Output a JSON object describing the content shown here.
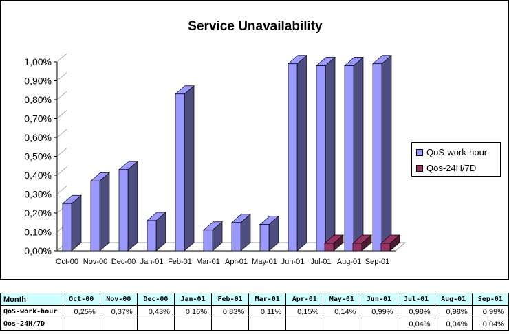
{
  "chart_data": {
    "type": "bar",
    "title": "Service Unavailability",
    "categories": [
      "Oct-00",
      "Nov-00",
      "Dec-00",
      "Jan-01",
      "Feb-01",
      "Mar-01",
      "Apr-01",
      "May-01",
      "Jun-01",
      "Jul-01",
      "Aug-01",
      "Sep-01"
    ],
    "series": [
      {
        "name": "QoS-work-hour",
        "values": [
          0.25,
          0.37,
          0.43,
          0.16,
          0.83,
          0.11,
          0.15,
          0.14,
          0.99,
          0.98,
          0.98,
          0.99
        ],
        "color": "#9999ff"
      },
      {
        "name": "Qos-24H/7D",
        "values": [
          null,
          null,
          null,
          null,
          null,
          null,
          null,
          null,
          null,
          0.04,
          0.04,
          0.04
        ],
        "color": "#993366"
      }
    ],
    "ylim": [
      0,
      1.0
    ],
    "yticks": [
      "0,00%",
      "0,10%",
      "0,20%",
      "0,30%",
      "0,40%",
      "0,50%",
      "0,60%",
      "0,70%",
      "0,80%",
      "0,90%",
      "1,00%"
    ],
    "legend_position": "right",
    "grid": false
  },
  "table": {
    "header_label": "Month",
    "months": [
      "Oct-00",
      "Nov-00",
      "Dec-00",
      "Jan-01",
      "Feb-01",
      "Mar-01",
      "Apr-01",
      "May-01",
      "Jun-01",
      "Jul-01",
      "Aug-01",
      "Sep-01"
    ],
    "rows": [
      {
        "label": "QoS-work-hour",
        "values": [
          "0,25%",
          "0,37%",
          "0,43%",
          "0,16%",
          "0,83%",
          "0,11%",
          "0,15%",
          "0,14%",
          "0,99%",
          "0,98%",
          "0,98%",
          "0,99%"
        ]
      },
      {
        "label": "Qos-24H/7D",
        "values": [
          "",
          "",
          "",
          "",
          "",
          "",
          "",
          "",
          "",
          "0,04%",
          "0,04%",
          "0,04%"
        ]
      }
    ]
  },
  "colors": {
    "header_bg": "#ccffff",
    "bar_front": "#9999ff",
    "bar_side": "#4d4d80",
    "bar2_front": "#993366",
    "bar2_side": "#4d1a33"
  }
}
